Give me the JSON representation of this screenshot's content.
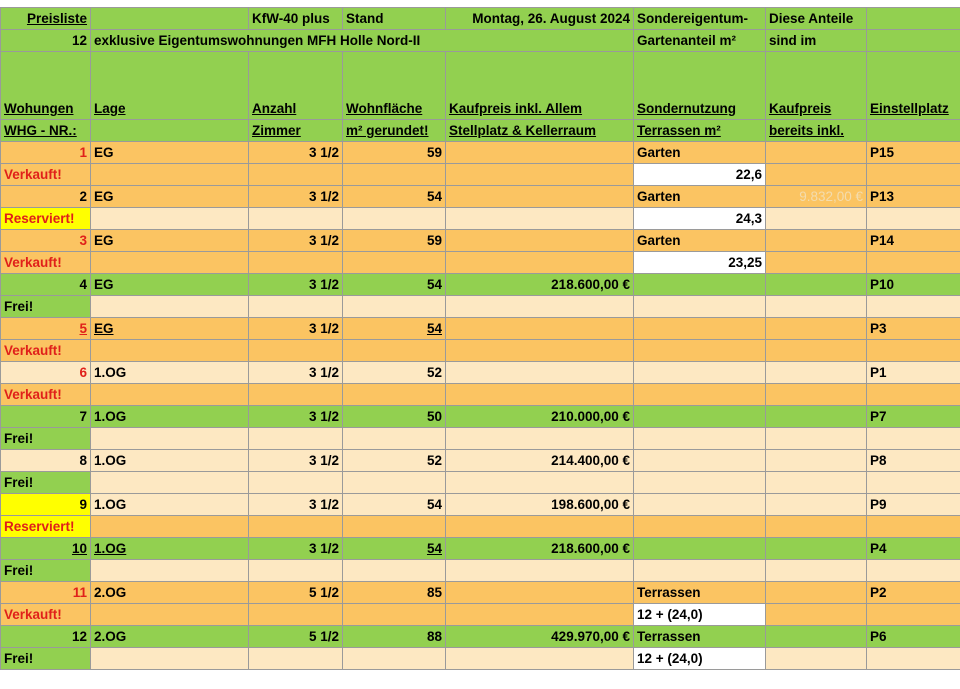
{
  "header": {
    "title": "Preisliste",
    "energy": "KfW-40 plus",
    "date_label": "Stand",
    "date": "Montag, 26. August 2024",
    "col6_line1": "Sondereigentum-",
    "col7_line1": "Diese Anteile",
    "count": 12,
    "subtitle": "exklusive Eigentumswohnungen MFH Holle Nord-II",
    "col6_line2": "Gartenanteil m²",
    "col7_line2": "sind im",
    "columns": [
      [
        "Wohungen",
        "WHG - NR.:"
      ],
      [
        "Lage"
      ],
      [
        "Anzahl",
        "Zimmer"
      ],
      [
        "Wohnfläche",
        "m² gerundet!"
      ],
      [
        "Kaufpreis inkl. Allem",
        "Stellplatz & Kellerraum"
      ],
      [
        "Sondernutzung",
        "Terrassen m²"
      ],
      [
        "Kaufpreis",
        "bereits inkl."
      ],
      [
        "Einstellplatz"
      ]
    ]
  },
  "units": [
    {
      "nr": 1,
      "lage": "EG",
      "zimmer": "3 1/2",
      "flaeche": 59,
      "sondernutzung": "Garten",
      "terrasse": "22,6",
      "stellplatz": "P15",
      "status": "Verkauft!"
    },
    {
      "nr": 2,
      "lage": "EG",
      "zimmer": "3 1/2",
      "flaeche": 54,
      "sondernutzung": "Garten",
      "terrasse": "24,3",
      "anteil": "9.832,00 €",
      "stellplatz": "P13",
      "status": "Reserviert!"
    },
    {
      "nr": 3,
      "lage": "EG",
      "zimmer": "3 1/2",
      "flaeche": 59,
      "sondernutzung": "Garten",
      "terrasse": "23,25",
      "stellplatz": "P14",
      "status": "Verkauft!"
    },
    {
      "nr": 4,
      "lage": "EG",
      "zimmer": "3 1/2",
      "flaeche": 54,
      "preis": "218.600,00 €",
      "stellplatz": "P10",
      "status": "Frei!"
    },
    {
      "nr": 5,
      "lage": "EG",
      "zimmer": "3 1/2",
      "flaeche": 54,
      "stellplatz": "P3",
      "status": "Verkauft!"
    },
    {
      "nr": 6,
      "lage": "1.OG",
      "zimmer": "3 1/2",
      "flaeche": 52,
      "stellplatz": "P1",
      "status": "Verkauft!"
    },
    {
      "nr": 7,
      "lage": "1.OG",
      "zimmer": "3 1/2",
      "flaeche": 50,
      "preis": "210.000,00 €",
      "stellplatz": "P7",
      "status": "Frei!"
    },
    {
      "nr": 8,
      "lage": "1.OG",
      "zimmer": "3 1/2",
      "flaeche": 52,
      "preis": "214.400,00 €",
      "stellplatz": "P8",
      "status": "Frei!"
    },
    {
      "nr": 9,
      "lage": "1.OG",
      "zimmer": "3 1/2",
      "flaeche": 54,
      "preis": "198.600,00 €",
      "stellplatz": "P9",
      "status": "Reserviert!"
    },
    {
      "nr": 10,
      "lage": "1.OG",
      "zimmer": "3 1/2",
      "flaeche": 54,
      "preis": "218.600,00 €",
      "stellplatz": "P4",
      "status": "Frei!"
    },
    {
      "nr": 11,
      "lage": "2.OG",
      "zimmer": "5 1/2",
      "flaeche": 85,
      "sondernutzung": "Terrassen",
      "terrasse": "12 + (24,0)",
      "stellplatz": "P2",
      "status": "Verkauft!"
    },
    {
      "nr": 12,
      "lage": "2.OG",
      "zimmer": "5 1/2",
      "flaeche": 88,
      "preis": "429.970,00 €",
      "sondernutzung": "Terrassen",
      "terrasse": "12 + (24,0)",
      "stellplatz": "P6",
      "status": "Frei!"
    }
  ]
}
